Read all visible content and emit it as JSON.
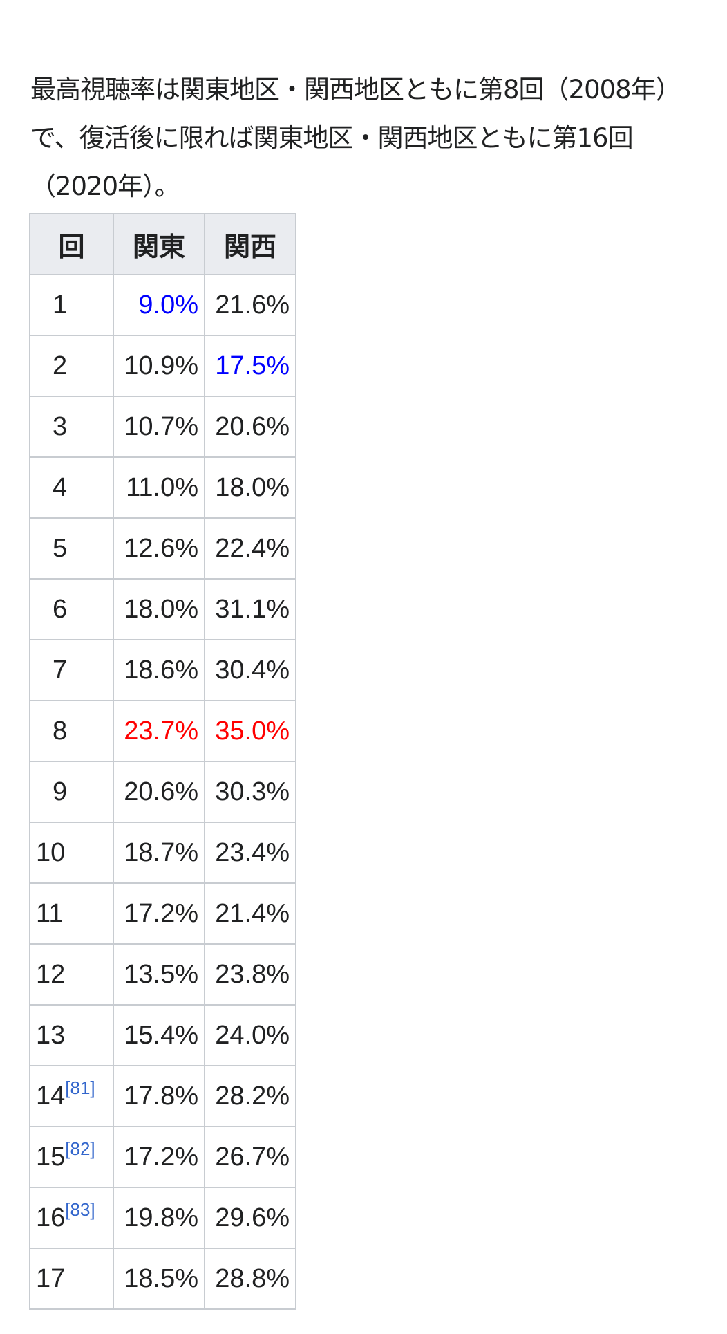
{
  "paragraph": "最高視聴率は関東地区・関西地区ともに第8回（2008年）で、復活後に限れば関東地区・関西地区ともに第16回（2020年）。",
  "colors": {
    "lowest": "#0000ff",
    "highest": "#ff0000",
    "reference": "#3366cc",
    "header_bg": "#eaecf0",
    "border": "#c8ccd1"
  },
  "table": {
    "headers": [
      "回",
      "関東",
      "関西"
    ],
    "rows": [
      {
        "no": "1",
        "kanto": "9.0%",
        "kansai": "21.6%",
        "kanto_mark": "lowest"
      },
      {
        "no": "2",
        "kanto": "10.9%",
        "kansai": "17.5%",
        "kansai_mark": "lowest"
      },
      {
        "no": "3",
        "kanto": "10.7%",
        "kansai": "20.6%"
      },
      {
        "no": "4",
        "kanto": "11.0%",
        "kansai": "18.0%"
      },
      {
        "no": "5",
        "kanto": "12.6%",
        "kansai": "22.4%"
      },
      {
        "no": "6",
        "kanto": "18.0%",
        "kansai": "31.1%"
      },
      {
        "no": "7",
        "kanto": "18.6%",
        "kansai": "30.4%"
      },
      {
        "no": "8",
        "kanto": "23.7%",
        "kansai": "35.0%",
        "kanto_mark": "highest",
        "kansai_mark": "highest"
      },
      {
        "no": "9",
        "kanto": "20.6%",
        "kansai": "30.3%"
      },
      {
        "no": "10",
        "kanto": "18.7%",
        "kansai": "23.4%"
      },
      {
        "no": "11",
        "kanto": "17.2%",
        "kansai": "21.4%"
      },
      {
        "no": "12",
        "kanto": "13.5%",
        "kansai": "23.8%"
      },
      {
        "no": "13",
        "kanto": "15.4%",
        "kansai": "24.0%"
      },
      {
        "no": "14",
        "ref": "[81]",
        "kanto": "17.8%",
        "kansai": "28.2%"
      },
      {
        "no": "15",
        "ref": "[82]",
        "kanto": "17.2%",
        "kansai": "26.7%"
      },
      {
        "no": "16",
        "ref": "[83]",
        "kanto": "19.8%",
        "kansai": "29.6%"
      },
      {
        "no": "17",
        "kanto": "18.5%",
        "kansai": "28.8%"
      }
    ]
  }
}
